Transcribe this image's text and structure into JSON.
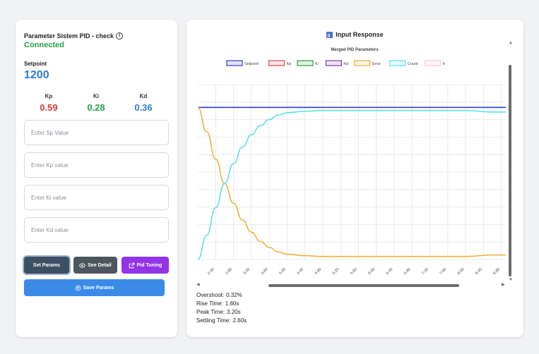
{
  "left_panel": {
    "title": "Parameter Sistem PID - check",
    "status": "Connected",
    "setpoint_label": "Setpoint",
    "setpoint_value": "1200",
    "gains": [
      {
        "label": "Kp",
        "value": "0.59"
      },
      {
        "label": "Ki",
        "value": "0.28"
      },
      {
        "label": "Kd",
        "value": "0.36"
      }
    ],
    "inputs": {
      "sp_placeholder": "Enter Sp Value",
      "kp_placeholder": "Enter Kp value",
      "ki_placeholder": "Enter Ki value",
      "kd_placeholder": "Enter Kd value"
    },
    "buttons": {
      "set_params": "Set Params",
      "see_detail": "See Detail",
      "pid_tuning": "Pid Tuning",
      "save_params": "Save Params"
    },
    "icons": [
      "info-icon",
      "eye-icon",
      "external-link-icon",
      "save-icon"
    ],
    "colors": {
      "connected": "#22a447",
      "kp": "#d93a3a",
      "ki": "#22a447",
      "kd": "#2f7ad6",
      "setpoint": "#2f7ad6"
    }
  },
  "right_panel": {
    "title": "Input Response",
    "title_icon": "bar-chart-icon",
    "stats": [
      {
        "label": "Overshoot:",
        "value": "0.32%"
      },
      {
        "label": "Rise Time:",
        "value": "1.60s"
      },
      {
        "label": "Peak Time:",
        "value": "3.20s"
      },
      {
        "label": "Settling Time:",
        "value": "2.60s"
      }
    ]
  },
  "chart_data": {
    "type": "line",
    "title": "Merged PID Parameters",
    "legend_position": "top",
    "grid": true,
    "x_tick_labels": [
      "2.40",
      "2.80",
      "3.20",
      "3.60",
      "4.00",
      "4.40",
      "4.80",
      "5.20",
      "5.60",
      "6.00",
      "6.40",
      "6.80",
      "7.20",
      "7.60",
      "8.00",
      "8.40",
      "8.80"
    ],
    "xlim": [
      2.0,
      8.9
    ],
    "ylim": [
      0,
      1.15
    ],
    "series": [
      {
        "name": "Setpoint",
        "color": "#2f3fd1",
        "x": [
          2.0,
          8.9
        ],
        "y": [
          1.0,
          1.0
        ]
      },
      {
        "name": "Kp",
        "color": "#e24a4a",
        "x": [],
        "y": []
      },
      {
        "name": "Ki",
        "color": "#2f9e44",
        "x": [],
        "y": []
      },
      {
        "name": "Kd",
        "color": "#7d3fb0",
        "x": [],
        "y": []
      },
      {
        "name": "Error",
        "color": "#f0b13a",
        "x": [
          2.0,
          2.2,
          2.4,
          2.6,
          2.8,
          3.0,
          3.2,
          3.4,
          3.6,
          3.8,
          4.0,
          4.4,
          4.8,
          5.6,
          6.4,
          7.2,
          8.0,
          8.6,
          8.9
        ],
        "y": [
          1.0,
          0.84,
          0.66,
          0.5,
          0.37,
          0.26,
          0.18,
          0.12,
          0.08,
          0.05,
          0.035,
          0.025,
          0.02,
          0.02,
          0.02,
          0.02,
          0.02,
          0.03,
          0.03
        ]
      },
      {
        "name": "Count",
        "color": "#5ce1e6",
        "x": [
          2.0,
          2.2,
          2.4,
          2.6,
          2.8,
          3.0,
          3.2,
          3.4,
          3.6,
          3.8,
          4.0,
          4.4,
          4.8,
          5.6,
          6.4,
          7.2,
          8.0,
          8.6,
          8.9
        ],
        "y": [
          0.0,
          0.16,
          0.34,
          0.5,
          0.63,
          0.74,
          0.82,
          0.88,
          0.92,
          0.95,
          0.965,
          0.975,
          0.98,
          0.98,
          0.98,
          0.98,
          0.98,
          0.97,
          0.97
        ]
      },
      {
        "name": "fr",
        "color": "#f3c9d2",
        "x": [],
        "y": []
      }
    ]
  }
}
